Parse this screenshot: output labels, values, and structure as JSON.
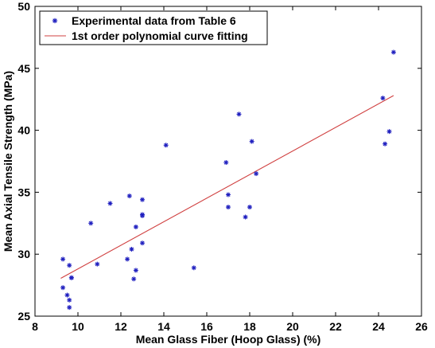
{
  "chart_data": {
    "type": "scatter",
    "title": "",
    "xlabel": "Mean Glass Fiber (Hoop Glass) (%)",
    "ylabel": "Mean Axial Tensile Strength (MPa)",
    "xlim": [
      8,
      26
    ],
    "ylim": [
      25,
      50
    ],
    "xticks": [
      8,
      10,
      12,
      14,
      16,
      18,
      20,
      22,
      24,
      26
    ],
    "yticks": [
      25,
      30,
      35,
      40,
      45,
      50
    ],
    "grid": false,
    "legend_position": "top-left",
    "series": [
      {
        "name": "Experimental data from Table 6",
        "kind": "scatter",
        "marker": "asterisk",
        "color": "#1f1fbf",
        "x": [
          9.3,
          9.3,
          9.5,
          9.6,
          9.6,
          9.7,
          9.6,
          9.7,
          10.6,
          10.9,
          11.5,
          12.3,
          12.4,
          12.5,
          12.6,
          12.7,
          12.7,
          13.0,
          13.0,
          13.0,
          13.0,
          14.1,
          15.4,
          16.9,
          17.0,
          17.0,
          17.5,
          17.8,
          18.0,
          18.1,
          18.3,
          24.2,
          24.3,
          24.5,
          24.7
        ],
        "y": [
          29.6,
          27.3,
          26.7,
          26.3,
          25.7,
          28.1,
          29.1,
          28.1,
          32.5,
          29.2,
          34.1,
          29.6,
          34.7,
          30.4,
          28.0,
          28.7,
          32.2,
          33.1,
          33.2,
          30.9,
          34.4,
          38.8,
          28.9,
          37.4,
          33.8,
          34.8,
          41.3,
          33.0,
          33.8,
          39.1,
          36.5,
          42.6,
          38.9,
          39.9,
          46.3
        ]
      },
      {
        "name": "1st order polynomial curve fitting",
        "kind": "line",
        "color": "#d04040",
        "x": [
          9.2,
          24.7
        ],
        "y": [
          28.05,
          42.8
        ]
      }
    ]
  }
}
